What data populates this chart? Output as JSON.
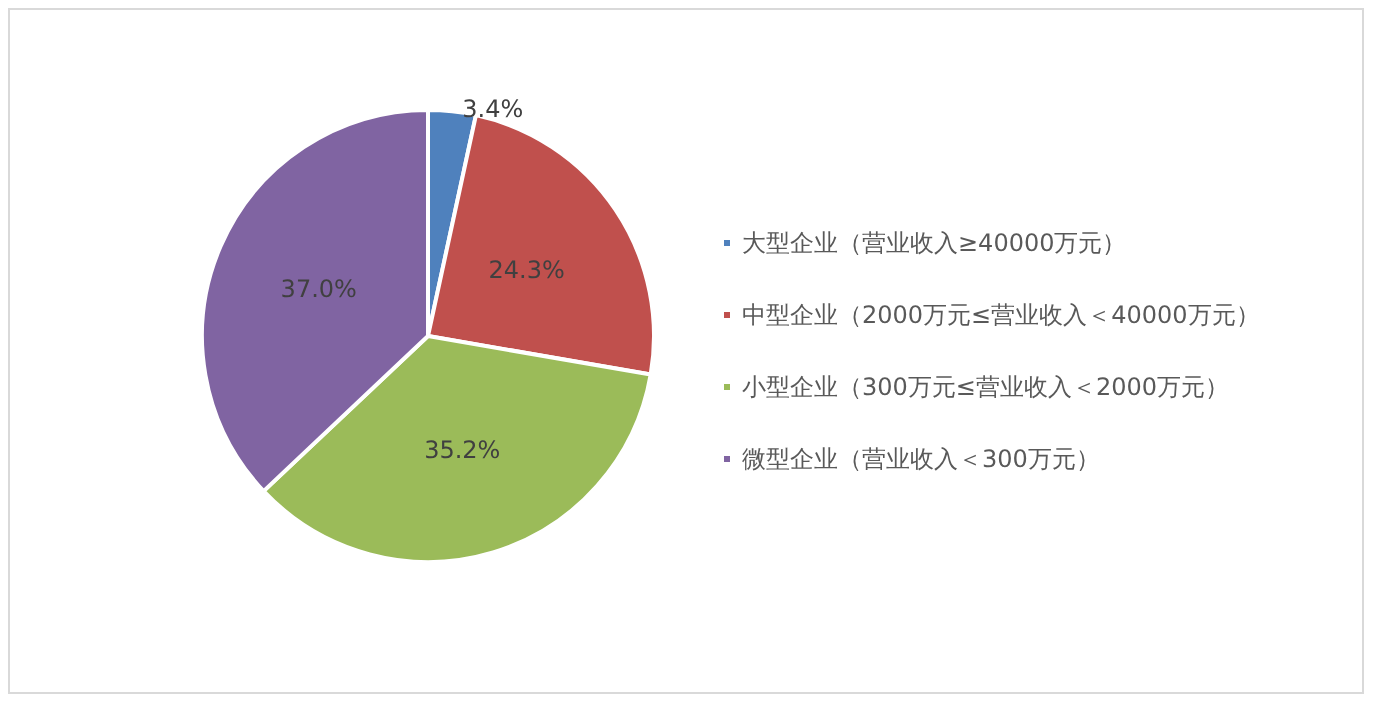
{
  "chart_data": {
    "type": "pie",
    "categories": [
      "大型企业（营业收入≥40000万元）",
      "中型企业（2000万元≤营业收入＜40000万元）",
      "小型企业（300万元≤营业收入＜2000万元）",
      "微型企业（营业收入＜300万元）"
    ],
    "values": [
      3.4,
      24.3,
      35.2,
      37.0
    ],
    "value_labels": [
      "3.4%",
      "24.3%",
      "35.2%",
      "37.0%"
    ],
    "colors": [
      "#4f81bd",
      "#c0504d",
      "#9bbb59",
      "#8064a2"
    ],
    "legend": "right"
  }
}
